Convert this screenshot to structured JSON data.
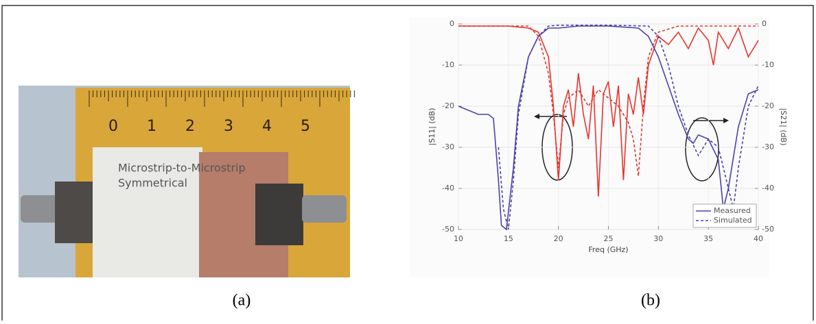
{
  "captions": [
    "(a)",
    "(b)"
  ],
  "photo": {
    "ruler_labels": [
      "0",
      "1",
      "2",
      "3",
      "4",
      "5"
    ],
    "board_text": [
      "Microstrip-to-Microstrip",
      "Symmetrical"
    ]
  },
  "chart_data": {
    "type": "line",
    "xlabel": "Freq (GHz)",
    "ylabel": "|S11| (dB)",
    "y2label": "|S21| (dB)",
    "xlim": [
      10,
      40
    ],
    "xticks": [
      10,
      15,
      20,
      25,
      30,
      35,
      40
    ],
    "ylim": [
      -50,
      0
    ],
    "yticks": [
      0,
      -10,
      -20,
      -30,
      -40,
      -50
    ],
    "y2lim": [
      -50,
      0
    ],
    "y2ticks": [
      0,
      -10,
      -20,
      -30,
      -40,
      -50
    ],
    "grid": true,
    "legend": "lower right",
    "series": [
      {
        "name": "Measured",
        "color": "#e8322a",
        "dash": false,
        "x": [
          10,
          15,
          17,
          18,
          19,
          19.5,
          20,
          20.5,
          21,
          21.5,
          22,
          22.5,
          23,
          23.5,
          24,
          24.5,
          25,
          25.5,
          26,
          26.5,
          27,
          27.5,
          28,
          28.5,
          29,
          30,
          31,
          32,
          33,
          34,
          35,
          35.5,
          36,
          37,
          38,
          39,
          40
        ],
        "values": [
          -0.5,
          -0.5,
          -1,
          -2,
          -8,
          -20,
          -38,
          -20,
          -16,
          -25,
          -12,
          -22,
          -28,
          -15,
          -42,
          -17,
          -14,
          -25,
          -15,
          -38,
          -17,
          -22,
          -13,
          -22,
          -10,
          -3,
          -5,
          -2,
          -6,
          -1,
          -4,
          -10,
          -2,
          -6,
          -1,
          -8,
          -4
        ]
      },
      {
        "name": "Simulated",
        "color": "#e8322a",
        "dash": true,
        "x": [
          10,
          17,
          18,
          19,
          19.5,
          20,
          20.5,
          21,
          22,
          23,
          24,
          25,
          26,
          27,
          27.5,
          28,
          28.5,
          29,
          30,
          32,
          40
        ],
        "values": [
          -0.5,
          -0.5,
          -3,
          -12,
          -22,
          -35,
          -22,
          -18,
          -16,
          -20,
          -16,
          -18,
          -20,
          -24,
          -28,
          -37,
          -20,
          -8,
          -2,
          -0.5,
          -0.5
        ]
      },
      {
        "name": "Measured",
        "color": "#4a3fb0",
        "dash": false,
        "axis": "y2",
        "x": [
          10,
          12,
          13,
          13.5,
          14,
          14.3,
          14.8,
          15.5,
          16,
          17,
          18,
          19,
          20,
          22,
          25,
          28,
          29,
          30,
          31,
          32,
          33,
          33.5,
          34,
          35,
          36,
          36.5,
          37,
          38,
          39,
          40
        ],
        "values": [
          -20,
          -22,
          -22,
          -23,
          -38,
          -49,
          -50,
          -35,
          -20,
          -8,
          -3,
          -1,
          -1,
          -0.5,
          -0.5,
          -1,
          -3,
          -8,
          -15,
          -22,
          -28,
          -29,
          -27,
          -28,
          -33,
          -45,
          -40,
          -25,
          -17,
          -16
        ]
      },
      {
        "name": "Simulated",
        "color": "#4a3fb0",
        "dash": true,
        "axis": "y2",
        "x": [
          14,
          14.5,
          15,
          15.5,
          16,
          17,
          18,
          19,
          20,
          25,
          29,
          30,
          31,
          32,
          33,
          34,
          35,
          36,
          37,
          37.5,
          38,
          39,
          40
        ],
        "values": [
          -30,
          -45,
          -50,
          -38,
          -22,
          -8,
          -3,
          -0.5,
          -0.3,
          -0.3,
          -0.5,
          -3,
          -10,
          -20,
          -27,
          -32,
          -28,
          -30,
          -40,
          -45,
          -35,
          -20,
          -15
        ]
      }
    ]
  }
}
